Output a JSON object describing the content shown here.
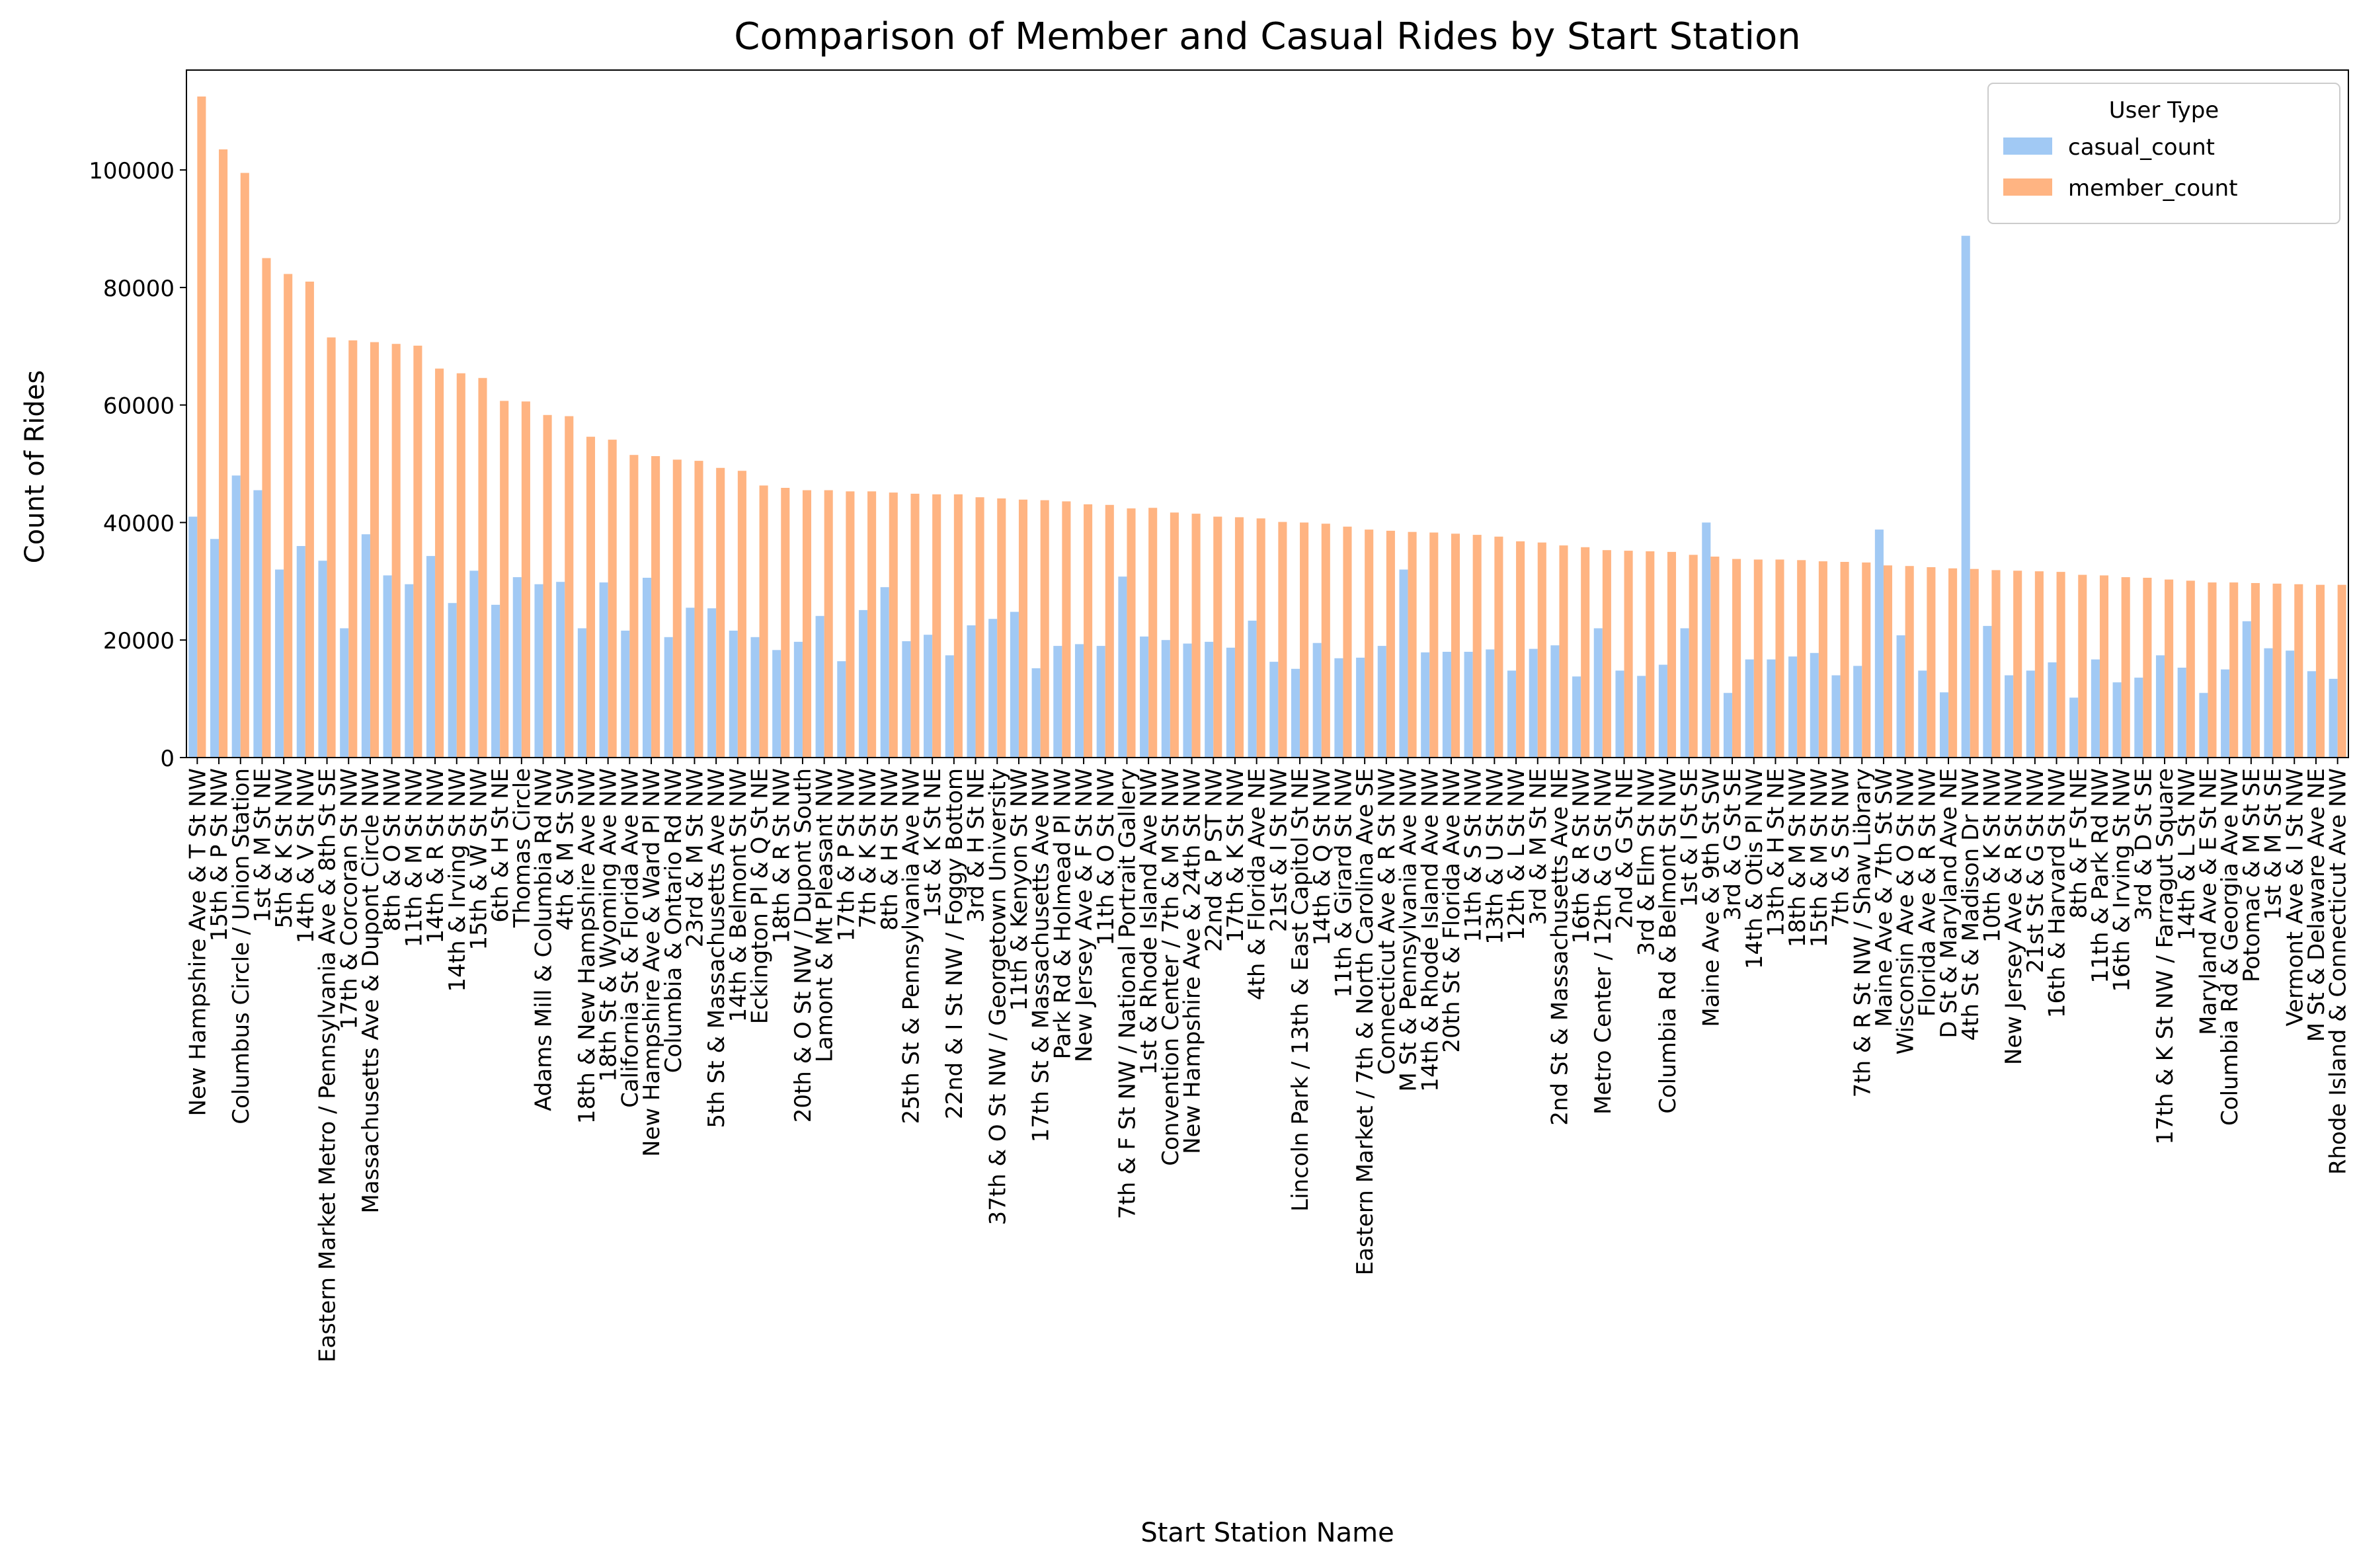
{
  "chart_data": {
    "type": "bar",
    "title": "Comparison of Member and Casual Rides by Start Station",
    "xlabel": "Start Station Name",
    "ylabel": "Count of Rides",
    "ylim": [
      0,
      117000
    ],
    "yticks": [
      0,
      20000,
      40000,
      60000,
      80000,
      100000
    ],
    "grid": false,
    "legend": {
      "title": "User Type",
      "position": "top-right"
    },
    "colors": {
      "casual_count": "#a1c9f4",
      "member_count": "#ffb482"
    },
    "categories": [
      "New Hampshire Ave & T St NW",
      "15th & P St NW",
      "Columbus Circle / Union Station",
      "1st & M St NE",
      "5th & K St NW",
      "14th & V St NW",
      "Eastern Market Metro / Pennsylvania Ave & 8th St SE",
      "17th & Corcoran St NW",
      "Massachusetts Ave & Dupont Circle NW",
      "8th & O St NW",
      "11th & M St NW",
      "14th & R St NW",
      "14th & Irving St NW",
      "15th & W St NW",
      "6th & H St NE",
      "Thomas Circle",
      "Adams Mill & Columbia Rd NW",
      "4th & M St SW",
      "18th & New Hampshire Ave NW",
      "18th St & Wyoming Ave NW",
      "California St & Florida Ave NW",
      "New Hampshire Ave & Ward Pl NW",
      "Columbia & Ontario Rd NW",
      "23rd & M St NW",
      "5th St & Massachusetts Ave NW",
      "14th & Belmont St NW",
      "Eckington Pl & Q St NE",
      "18th & R St NW",
      "20th & O St NW / Dupont South",
      "Lamont & Mt Pleasant NW",
      "17th & P St NW",
      "7th & K St NW",
      "8th & H St NW",
      "25th St & Pennsylvania Ave NW",
      "1st & K St NE",
      "22nd & I St NW / Foggy Bottom",
      "3rd & H St NE",
      "37th & O St NW / Georgetown University",
      "11th & Kenyon St NW",
      "17th St & Massachusetts Ave NW",
      "Park Rd & Holmead Pl NW",
      "New Jersey Ave & F St NW",
      "11th & O St NW",
      "7th & F St NW / National Portrait Gallery",
      "1st & Rhode Island Ave NW",
      "Convention Center / 7th & M St NW",
      "New Hampshire Ave & 24th St NW",
      "22nd & P ST NW",
      "17th & K St NW",
      "4th & Florida Ave NE",
      "21st & I St NW",
      "Lincoln Park / 13th & East Capitol St NE",
      "14th & Q St NW",
      "11th & Girard St NW",
      "Eastern Market / 7th & North Carolina Ave SE",
      "Connecticut Ave & R St NW",
      "M St & Pennsylvania Ave NW",
      "14th & Rhode Island Ave NW",
      "20th St & Florida Ave NW",
      "11th & S St NW",
      "13th & U St NW",
      "12th & L St NW",
      "3rd & M St NE",
      "2nd St & Massachusetts Ave NE",
      "16th & R St NW",
      "Metro Center / 12th & G St NW",
      "2nd & G St NE",
      "3rd & Elm St NW",
      "Columbia Rd & Belmont St NW",
      "1st & I St SE",
      "Maine Ave & 9th St SW",
      "3rd & G St SE",
      "14th & Otis Pl NW",
      "13th & H St NE",
      "18th & M St NW",
      "15th & M St NW",
      "7th & S St NW",
      "7th & R St NW / Shaw Library",
      "Maine Ave & 7th St SW",
      "Wisconsin Ave & O St NW",
      "Florida Ave & R St NW",
      "D St & Maryland Ave NE",
      "4th St & Madison Dr NW",
      "10th & K St NW",
      "New Jersey Ave & R St NW",
      "21st St & G St NW",
      "16th & Harvard St NW",
      "8th & F St NE",
      "11th & Park Rd NW",
      "16th & Irving St NW",
      "3rd & D St SE",
      "17th & K St NW / Farragut Square",
      "14th & L St NW",
      "Maryland Ave & E St NE",
      "Columbia Rd & Georgia Ave NW",
      "Potomac & M St SE",
      "1st & M St SE",
      "Vermont Ave & I St NW",
      "M St & Delaware Ave NE",
      "Rhode Island & Connecticut Ave NW"
    ],
    "series": [
      {
        "name": "casual_count",
        "values": [
          41000,
          37200,
          48000,
          45500,
          32000,
          36000,
          33500,
          22000,
          38000,
          31000,
          29500,
          34300,
          26300,
          31800,
          26000,
          30700,
          29500,
          29900,
          22000,
          29800,
          21600,
          30600,
          20500,
          25500,
          25400,
          21600,
          20500,
          18300,
          19700,
          24100,
          16400,
          25100,
          29000,
          19800,
          20900,
          17400,
          22500,
          23600,
          24800,
          15200,
          19000,
          19300,
          19000,
          30800,
          20600,
          20000,
          19400,
          19700,
          18700,
          23300,
          16300,
          15100,
          19500,
          16900,
          17000,
          19000,
          32000,
          17900,
          18000,
          18000,
          18400,
          14800,
          18500,
          19100,
          13800,
          22000,
          14800,
          13900,
          15800,
          22000,
          40000,
          11000,
          16700,
          16700,
          17200,
          17800,
          14000,
          15600,
          38800,
          20800,
          14800,
          11100,
          88800,
          22400,
          14000,
          14800,
          16200,
          10200,
          16700,
          12800,
          13600,
          17400,
          15300,
          11000,
          15000,
          23200,
          18600,
          18200,
          14700,
          13400
        ]
      },
      {
        "name": "member_count",
        "values": [
          112500,
          103500,
          99500,
          85000,
          82300,
          81000,
          71500,
          71000,
          70700,
          70400,
          70100,
          66200,
          65400,
          64600,
          60700,
          60600,
          58300,
          58100,
          54600,
          54100,
          51500,
          51300,
          50700,
          50500,
          49300,
          48800,
          46300,
          45900,
          45500,
          45500,
          45300,
          45300,
          45100,
          44900,
          44800,
          44800,
          44300,
          44100,
          43900,
          43800,
          43600,
          43100,
          43000,
          42400,
          42500,
          41700,
          41500,
          41000,
          40900,
          40700,
          40100,
          40000,
          39800,
          39300,
          38800,
          38600,
          38400,
          38300,
          38100,
          37900,
          37600,
          36800,
          36600,
          36100,
          35800,
          35300,
          35200,
          35100,
          35000,
          34500,
          34200,
          33800,
          33700,
          33700,
          33600,
          33400,
          33300,
          33200,
          32700,
          32600,
          32400,
          32200,
          32100,
          31900,
          31800,
          31700,
          31600,
          31100,
          31000,
          30700,
          30600,
          30300,
          30100,
          29800,
          29800,
          29700,
          29600,
          29500,
          29400,
          29400
        ]
      }
    ]
  }
}
